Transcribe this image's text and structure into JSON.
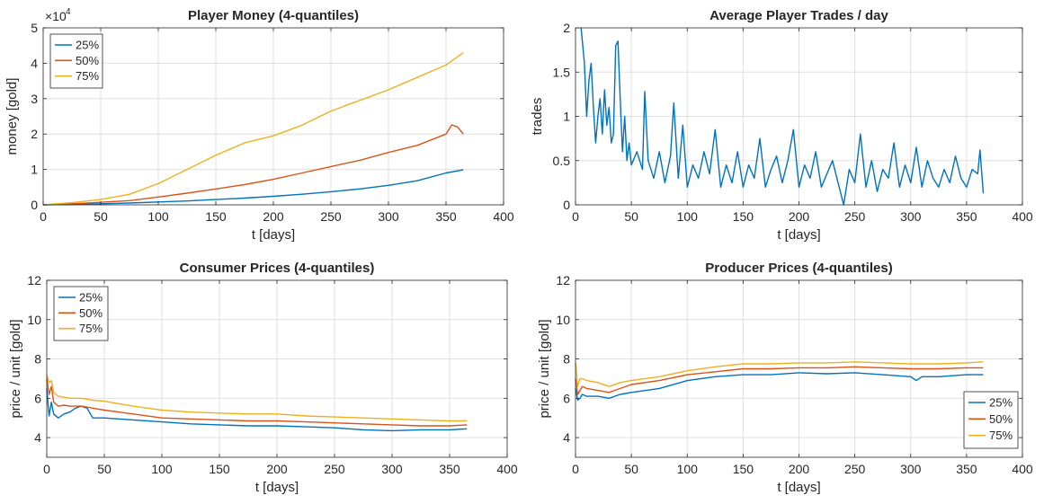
{
  "colors": {
    "q25": "#0072bd",
    "q50": "#d95319",
    "q75": "#edb120",
    "grid": "#e0e0e0",
    "axis": "#262626"
  },
  "chart_data": [
    {
      "id": "money",
      "type": "line",
      "title": "Player Money (4-quantiles)",
      "xlabel": "t [days]",
      "ylabel": "money [gold]",
      "xlim": [
        0,
        400
      ],
      "ylim": [
        0,
        50000
      ],
      "xticks": [
        0,
        50,
        100,
        150,
        200,
        250,
        300,
        350,
        400
      ],
      "xtick_labels": [
        "0",
        "50",
        "100",
        "150",
        "200",
        "250",
        "300",
        "350",
        "400"
      ],
      "yticks": [
        0,
        10000,
        20000,
        30000,
        40000,
        50000
      ],
      "ytick_labels": [
        "0",
        "1",
        "2",
        "3",
        "4",
        "5"
      ],
      "exponent_label": "×10",
      "exponent_power": "4",
      "grid": true,
      "legend": "top-left",
      "series": [
        {
          "name": "25%",
          "x": [
            0,
            25,
            50,
            75,
            100,
            125,
            150,
            175,
            200,
            225,
            250,
            275,
            300,
            325,
            350,
            365
          ],
          "values": [
            0,
            150,
            300,
            500,
            800,
            1100,
            1500,
            1900,
            2400,
            3000,
            3700,
            4500,
            5500,
            6800,
            9000,
            9900
          ]
        },
        {
          "name": "50%",
          "x": [
            0,
            25,
            50,
            75,
            100,
            125,
            150,
            175,
            200,
            225,
            250,
            275,
            300,
            325,
            350,
            355,
            360,
            365
          ],
          "values": [
            0,
            300,
            700,
            1200,
            2200,
            3300,
            4500,
            5700,
            7200,
            9000,
            10800,
            12600,
            14800,
            16800,
            20000,
            22600,
            22000,
            20000
          ]
        },
        {
          "name": "75%",
          "x": [
            0,
            25,
            50,
            75,
            100,
            125,
            150,
            175,
            200,
            225,
            250,
            275,
            300,
            325,
            350,
            365
          ],
          "values": [
            0,
            600,
            1500,
            3000,
            6000,
            10000,
            14000,
            17500,
            19500,
            22500,
            26500,
            29500,
            32500,
            36000,
            39500,
            43000
          ]
        }
      ]
    },
    {
      "id": "trades",
      "type": "line",
      "title": "Average Player Trades / day",
      "xlabel": "t [days]",
      "ylabel": "trades",
      "xlim": [
        0,
        400
      ],
      "ylim": [
        0,
        2
      ],
      "xticks": [
        0,
        50,
        100,
        150,
        200,
        250,
        300,
        350,
        400
      ],
      "xtick_labels": [
        "0",
        "50",
        "100",
        "150",
        "200",
        "250",
        "300",
        "350",
        "400"
      ],
      "yticks": [
        0,
        0.5,
        1,
        1.5,
        2
      ],
      "ytick_labels": [
        "0",
        "0.5",
        "1",
        "1.5",
        "2"
      ],
      "grid": true,
      "series": [
        {
          "name": "",
          "x": [
            5,
            8,
            10,
            12,
            14,
            16,
            18,
            20,
            22,
            24,
            26,
            28,
            30,
            32,
            34,
            36,
            38,
            40,
            42,
            44,
            46,
            48,
            50,
            55,
            60,
            62,
            65,
            70,
            75,
            80,
            85,
            88,
            92,
            96,
            100,
            105,
            110,
            115,
            120,
            125,
            130,
            135,
            140,
            145,
            150,
            155,
            160,
            165,
            170,
            175,
            180,
            185,
            190,
            195,
            200,
            205,
            210,
            215,
            220,
            225,
            230,
            235,
            240,
            245,
            250,
            255,
            260,
            265,
            270,
            275,
            280,
            285,
            290,
            295,
            300,
            305,
            310,
            315,
            320,
            325,
            330,
            335,
            340,
            345,
            350,
            355,
            360,
            362,
            365
          ],
          "values": [
            2.0,
            1.6,
            1.0,
            1.4,
            1.6,
            1.1,
            0.7,
            1.0,
            1.2,
            0.8,
            1.3,
            0.9,
            1.1,
            0.7,
            0.8,
            1.8,
            1.85,
            1.2,
            0.6,
            1.0,
            0.5,
            0.7,
            0.45,
            0.6,
            0.4,
            1.28,
            0.5,
            0.3,
            0.6,
            0.25,
            0.55,
            1.15,
            0.3,
            0.9,
            0.2,
            0.45,
            0.3,
            0.6,
            0.35,
            0.85,
            0.2,
            0.45,
            0.25,
            0.6,
            0.2,
            0.45,
            0.3,
            0.75,
            0.2,
            0.4,
            0.55,
            0.25,
            0.5,
            0.85,
            0.2,
            0.45,
            0.3,
            0.6,
            0.2,
            0.35,
            0.5,
            0.25,
            0.0,
            0.4,
            0.25,
            0.8,
            0.2,
            0.5,
            0.15,
            0.4,
            0.3,
            0.7,
            0.2,
            0.45,
            0.25,
            0.65,
            0.2,
            0.5,
            0.3,
            0.2,
            0.4,
            0.25,
            0.55,
            0.3,
            0.2,
            0.4,
            0.35,
            0.62,
            0.13
          ]
        }
      ]
    },
    {
      "id": "consumer",
      "type": "line",
      "title": "Consumer Prices (4-quantiles)",
      "xlabel": "t [days]",
      "ylabel": "price / unit [gold]",
      "xlim": [
        0,
        400
      ],
      "ylim": [
        3,
        12
      ],
      "xticks": [
        0,
        50,
        100,
        150,
        200,
        250,
        300,
        350,
        400
      ],
      "xtick_labels": [
        "0",
        "50",
        "100",
        "150",
        "200",
        "250",
        "300",
        "350",
        "400"
      ],
      "yticks": [
        4,
        6,
        8,
        10,
        12
      ],
      "ytick_labels": [
        "4",
        "6",
        "8",
        "10",
        "12"
      ],
      "grid": true,
      "legend": "top-left",
      "series": [
        {
          "name": "25%",
          "x": [
            0,
            2,
            4,
            6,
            10,
            15,
            20,
            25,
            30,
            35,
            40,
            50,
            75,
            100,
            125,
            150,
            175,
            200,
            225,
            250,
            275,
            300,
            325,
            350,
            365
          ],
          "values": [
            6.5,
            5.1,
            5.8,
            5.2,
            5.0,
            5.2,
            5.3,
            5.5,
            5.6,
            5.5,
            5.0,
            5.0,
            4.9,
            4.8,
            4.7,
            4.65,
            4.6,
            4.6,
            4.55,
            4.5,
            4.4,
            4.35,
            4.4,
            4.4,
            4.45
          ]
        },
        {
          "name": "50%",
          "x": [
            0,
            2,
            4,
            6,
            10,
            15,
            20,
            30,
            40,
            50,
            75,
            100,
            125,
            150,
            175,
            200,
            225,
            250,
            275,
            300,
            325,
            350,
            365
          ],
          "values": [
            7.0,
            6.2,
            6.6,
            5.8,
            5.6,
            5.65,
            5.6,
            5.6,
            5.5,
            5.4,
            5.2,
            5.0,
            4.95,
            4.9,
            4.85,
            4.85,
            4.8,
            4.75,
            4.7,
            4.65,
            4.6,
            4.6,
            4.65
          ]
        },
        {
          "name": "75%",
          "x": [
            0,
            2,
            4,
            6,
            10,
            15,
            20,
            30,
            40,
            50,
            75,
            100,
            125,
            150,
            175,
            200,
            225,
            250,
            275,
            300,
            325,
            350,
            365
          ],
          "values": [
            7.2,
            6.8,
            6.9,
            6.3,
            6.1,
            6.05,
            6.0,
            6.0,
            5.9,
            5.85,
            5.6,
            5.4,
            5.3,
            5.25,
            5.2,
            5.2,
            5.1,
            5.05,
            5.0,
            4.95,
            4.9,
            4.85,
            4.85
          ]
        }
      ]
    },
    {
      "id": "producer",
      "type": "line",
      "title": "Producer Prices (4-quantiles)",
      "xlabel": "t [days]",
      "ylabel": "price / unit [gold]",
      "xlim": [
        0,
        400
      ],
      "ylim": [
        3,
        12
      ],
      "xticks": [
        0,
        50,
        100,
        150,
        200,
        250,
        300,
        350,
        400
      ],
      "xtick_labels": [
        "0",
        "50",
        "100",
        "150",
        "200",
        "250",
        "300",
        "350",
        "400"
      ],
      "yticks": [
        4,
        6,
        8,
        10,
        12
      ],
      "ytick_labels": [
        "4",
        "6",
        "8",
        "10",
        "12"
      ],
      "grid": true,
      "legend": "bottom-right",
      "series": [
        {
          "name": "25%",
          "x": [
            0,
            2,
            4,
            6,
            10,
            20,
            30,
            40,
            50,
            75,
            100,
            125,
            150,
            175,
            200,
            225,
            250,
            275,
            300,
            305,
            310,
            325,
            350,
            365
          ],
          "values": [
            6.5,
            5.9,
            6.0,
            6.2,
            6.1,
            6.1,
            6.0,
            6.2,
            6.3,
            6.5,
            6.9,
            7.1,
            7.2,
            7.2,
            7.3,
            7.25,
            7.3,
            7.2,
            7.1,
            6.9,
            7.1,
            7.1,
            7.2,
            7.2
          ]
        },
        {
          "name": "50%",
          "x": [
            0,
            2,
            4,
            6,
            10,
            20,
            30,
            40,
            50,
            75,
            100,
            125,
            150,
            175,
            200,
            225,
            250,
            275,
            300,
            325,
            350,
            365
          ],
          "values": [
            7.0,
            6.2,
            6.4,
            6.6,
            6.5,
            6.4,
            6.3,
            6.5,
            6.7,
            6.9,
            7.2,
            7.35,
            7.5,
            7.5,
            7.55,
            7.55,
            7.6,
            7.55,
            7.5,
            7.5,
            7.55,
            7.55
          ]
        },
        {
          "name": "75%",
          "x": [
            0,
            2,
            4,
            6,
            10,
            20,
            30,
            40,
            50,
            75,
            100,
            125,
            150,
            175,
            200,
            225,
            250,
            275,
            300,
            325,
            350,
            365
          ],
          "values": [
            7.8,
            6.6,
            7.0,
            7.0,
            6.9,
            6.8,
            6.6,
            6.8,
            6.9,
            7.1,
            7.4,
            7.6,
            7.75,
            7.75,
            7.8,
            7.8,
            7.85,
            7.8,
            7.75,
            7.75,
            7.8,
            7.85
          ]
        }
      ]
    }
  ]
}
